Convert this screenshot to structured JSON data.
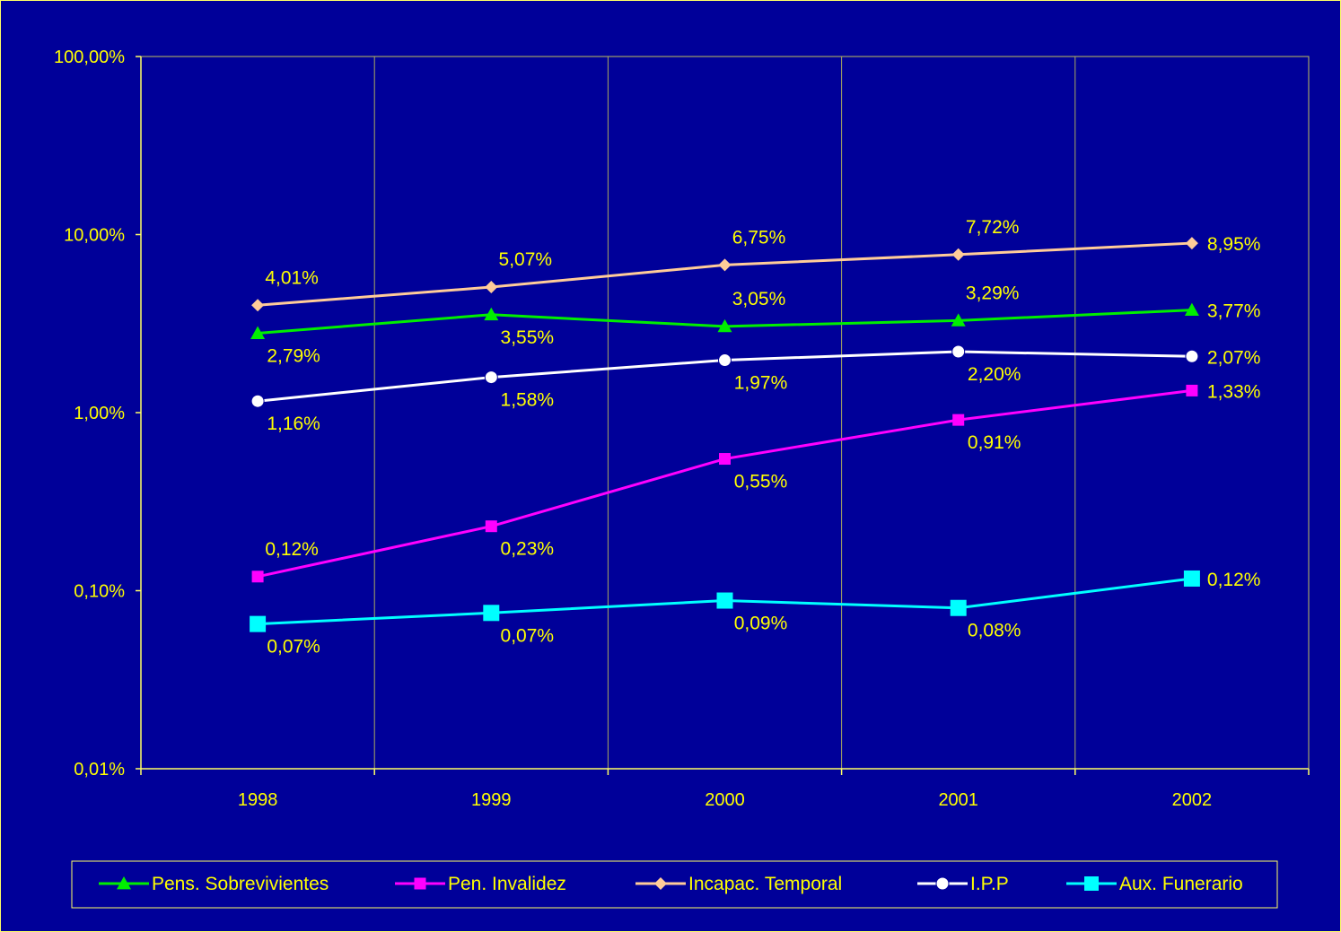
{
  "chart_data": {
    "type": "line",
    "y_scale": "log",
    "ylim": [
      0.0001,
      1
    ],
    "y_ticks": [
      {
        "value": 1,
        "label": "100,00%"
      },
      {
        "value": 0.1,
        "label": "10,00%"
      },
      {
        "value": 0.01,
        "label": "1,00%"
      },
      {
        "value": 0.001,
        "label": "0,10%"
      },
      {
        "value": 0.0001,
        "label": "0,01%"
      }
    ],
    "categories": [
      "1998",
      "1999",
      "2000",
      "2001",
      "2002"
    ],
    "grid": "vertical",
    "legend_position": "bottom",
    "series": [
      {
        "name": "Pens. Sobrevivientes",
        "color": "#00ee00",
        "marker": "triangle",
        "values": [
          0.0279,
          0.0355,
          0.0305,
          0.0329,
          0.0377
        ],
        "labels": [
          "2,79%",
          "3,55%",
          "3,05%",
          "3,29%",
          "3,77%"
        ],
        "label_pos": [
          "below",
          "below",
          "above",
          "above",
          "right"
        ]
      },
      {
        "name": "Pen. Invalidez",
        "color": "#ff00ff",
        "marker": "square",
        "values": [
          0.0012,
          0.0023,
          0.0055,
          0.0091,
          0.0133
        ],
        "labels": [
          "0,12%",
          "0,23%",
          "0,55%",
          "0,91%",
          "1,33%"
        ],
        "label_pos": [
          "above",
          "below",
          "below",
          "below",
          "right"
        ]
      },
      {
        "name": "Incapac. Temporal",
        "color": "#ffcc99",
        "marker": "diamond",
        "values": [
          0.0401,
          0.0507,
          0.0675,
          0.0772,
          0.0895
        ],
        "labels": [
          "4,01%",
          "5,07%",
          "6,75%",
          "7,72%",
          "8,95%"
        ],
        "label_pos": [
          "above",
          "above",
          "above",
          "above",
          "right"
        ]
      },
      {
        "name": "I.P.P",
        "color": "#ffffff",
        "marker": "circle",
        "values": [
          0.0116,
          0.0158,
          0.0197,
          0.022,
          0.0207
        ],
        "labels": [
          "1,16%",
          "1,58%",
          "1,97%",
          "2,20%",
          "2,07%"
        ],
        "label_pos": [
          "below",
          "below",
          "below",
          "below",
          "right"
        ]
      },
      {
        "name": "Aux. Funerario",
        "color": "#00ffff",
        "marker": "square",
        "values": [
          0.00065,
          0.00075,
          0.00088,
          0.0008,
          0.00117
        ],
        "labels": [
          "0,07%",
          "0,07%",
          "0,09%",
          "0,08%",
          "0,12%"
        ],
        "label_pos": [
          "below",
          "below",
          "below",
          "below",
          "right"
        ]
      }
    ]
  }
}
